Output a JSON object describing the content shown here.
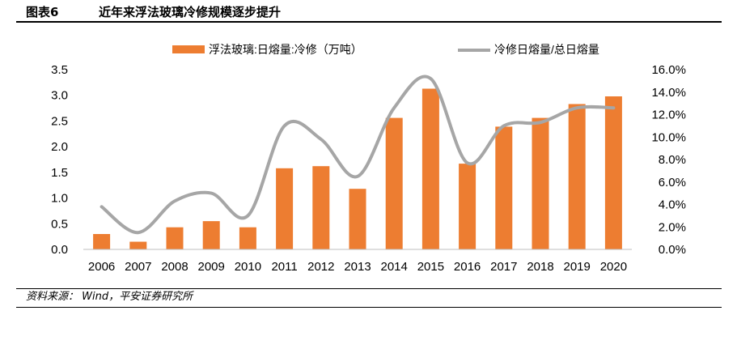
{
  "figure": {
    "number": "图表6",
    "title": "近年来浮法玻璃冷修规模逐步提升",
    "source": "资料来源：  Wind，平安证券研究所"
  },
  "colors": {
    "bar": "#ED7D31",
    "line": "#A6A6A6",
    "axis": "#BFBFBF"
  },
  "chart_data": {
    "type": "bar",
    "categories": [
      "2006",
      "2007",
      "2008",
      "2009",
      "2010",
      "2011",
      "2012",
      "2013",
      "2014",
      "2015",
      "2016",
      "2017",
      "2018",
      "2019",
      "2020"
    ],
    "series": [
      {
        "name": "浮法玻璃:日熔量:冷修（万吨）",
        "type": "bar",
        "axis": "left",
        "values": [
          0.3,
          0.15,
          0.43,
          0.55,
          0.43,
          1.58,
          1.62,
          1.18,
          2.56,
          3.13,
          1.67,
          2.39,
          2.56,
          2.83,
          2.98
        ]
      },
      {
        "name": "冷修日熔量/总日熔量",
        "type": "line",
        "axis": "right",
        "values": [
          3.8,
          1.5,
          4.3,
          5.0,
          3.0,
          11.0,
          9.8,
          6.5,
          12.6,
          15.2,
          7.7,
          11.0,
          11.3,
          12.6,
          12.6
        ]
      }
    ],
    "yleft": {
      "lim": [
        0,
        3.5
      ],
      "ticks": [
        "0.0",
        "0.5",
        "1.0",
        "1.5",
        "2.0",
        "2.5",
        "3.0",
        "3.5"
      ]
    },
    "yright": {
      "lim": [
        0,
        16
      ],
      "ticks": [
        "0.0%",
        "2.0%",
        "4.0%",
        "6.0%",
        "8.0%",
        "10.0%",
        "12.0%",
        "14.0%",
        "16.0%"
      ]
    },
    "legend_position": "top",
    "grid": false
  }
}
